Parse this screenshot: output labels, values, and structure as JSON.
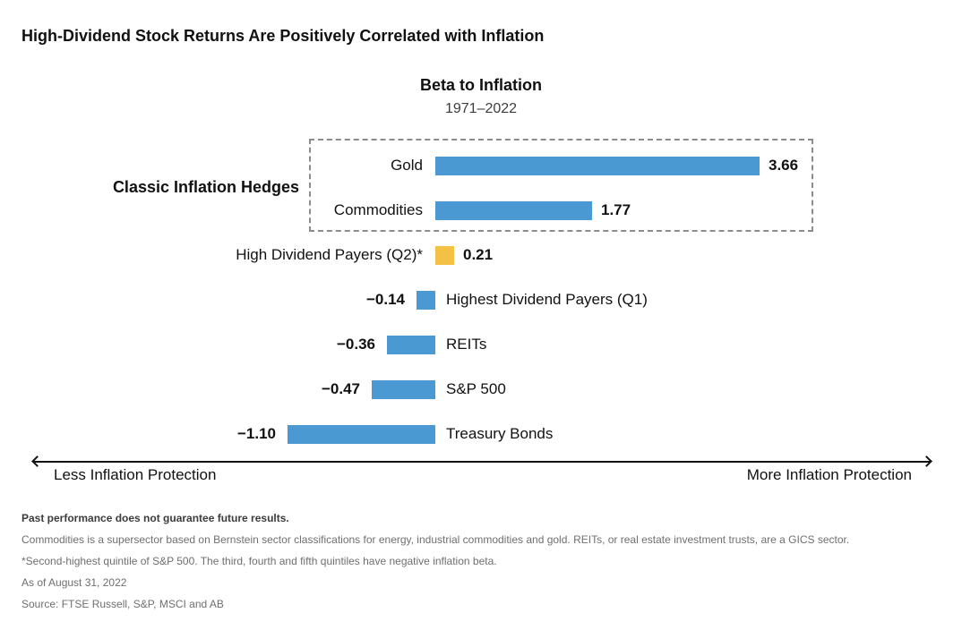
{
  "page": {
    "title": "High-Dividend Stock Returns Are Positively Correlated with Inflation"
  },
  "chart_data": {
    "type": "bar",
    "orientation": "horizontal",
    "title": "Beta to Inflation",
    "subtitle": "1971–2022",
    "categories": [
      "Gold",
      "Commodities",
      "High Dividend Payers (Q2)*",
      "Highest Dividend Payers (Q1)",
      "REITs",
      "S&P 500",
      "Treasury Bonds"
    ],
    "values": [
      3.66,
      1.77,
      0.21,
      -0.14,
      -0.36,
      -0.47,
      -1.1
    ],
    "value_labels": [
      "3.66",
      "1.77",
      "0.21",
      "−0.14",
      "−0.36",
      "−0.47",
      "−1.10"
    ],
    "default_color": "#4A99D2",
    "highlight_color": "#F5C144",
    "bar_colors": [
      "#4A99D2",
      "#4A99D2",
      "#F5C144",
      "#4A99D2",
      "#4A99D2",
      "#4A99D2",
      "#4A99D2"
    ],
    "annotation": {
      "label": "Classic Inflation Hedges",
      "covers": [
        "Gold",
        "Commodities"
      ]
    },
    "axis_labels": {
      "left": "Less Inflation Protection",
      "right": "More Inflation Protection"
    },
    "xlim": [
      -1.3,
      4.2
    ],
    "grid": false,
    "legend": "none"
  },
  "footnotes": {
    "disclaimer": "Past performance does not guarantee future results.",
    "note_commodities": "Commodities is a supersector based on Bernstein sector classifications for energy, industrial commodities and gold. REITs, or real estate investment trusts, are a GICS sector.",
    "note_quintile": "*Second-highest quintile of S&P 500. The third, fourth and fifth quintiles have negative inflation beta.",
    "as_of": "As of August 31, 2022",
    "source": "Source: FTSE Russell, S&P, MSCI and AB"
  }
}
